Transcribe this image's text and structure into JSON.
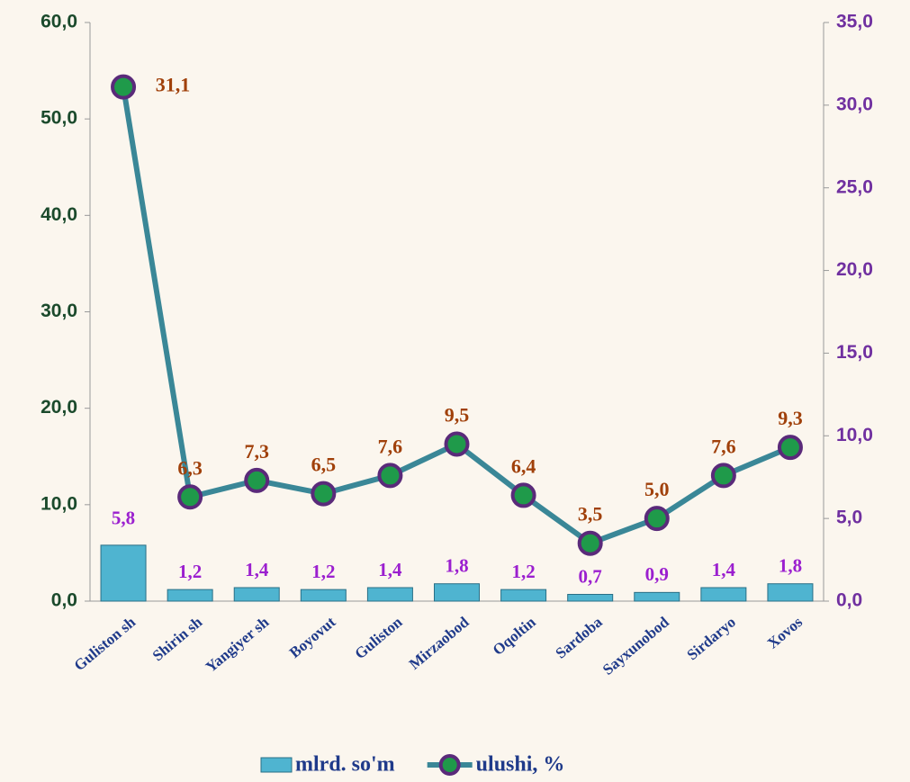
{
  "chart_data": {
    "type": "combo",
    "categories": [
      "Guliston sh",
      "Shirin sh",
      "Yangiyer sh",
      "Boyovut",
      "Guliston",
      "Mirzaobod",
      "Oqoltin",
      "Sardoba",
      "Sayxunobod",
      "Sirdaryo",
      "Xovos"
    ],
    "series": [
      {
        "name": "mlrd. so'm",
        "type": "bar",
        "color": "#4fb4d0",
        "values": [
          5.8,
          1.2,
          1.4,
          1.2,
          1.4,
          1.8,
          1.2,
          0.7,
          0.9,
          1.4,
          1.8
        ],
        "value_labels": [
          "5,8",
          "1,2",
          "1,4",
          "1,2",
          "1,4",
          "1,8",
          "1,2",
          "0,7",
          "0,9",
          "1,4",
          "1,8"
        ]
      },
      {
        "name": "ulushi, %",
        "type": "line",
        "axis": "y2",
        "color": "#3a8797",
        "marker_color": "#1f9a4a",
        "values": [
          31.1,
          6.3,
          7.3,
          6.5,
          7.6,
          9.5,
          6.4,
          3.5,
          5.0,
          7.6,
          9.3
        ],
        "value_labels": [
          "31,1",
          "6,3",
          "7,3",
          "6,5",
          "7,6",
          "9,5",
          "6,4",
          "3,5",
          "5,0",
          "7,6",
          "9,3"
        ]
      }
    ],
    "ylim": [
      0,
      60
    ],
    "yticks": [
      {
        "value": 0,
        "label": "0,0"
      },
      {
        "value": 10,
        "label": "10,0"
      },
      {
        "value": 20,
        "label": "20,0"
      },
      {
        "value": 30,
        "label": "30,0"
      },
      {
        "value": 40,
        "label": "40,0"
      },
      {
        "value": 50,
        "label": "50,0"
      },
      {
        "value": 60,
        "label": "60,0"
      }
    ],
    "y2lim": [
      0,
      35
    ],
    "y2ticks": [
      {
        "value": 0,
        "label": "0,0"
      },
      {
        "value": 5,
        "label": "5,0"
      },
      {
        "value": 10,
        "label": "10,0"
      },
      {
        "value": 15,
        "label": "15,0"
      },
      {
        "value": 20,
        "label": "20,0"
      },
      {
        "value": 25,
        "label": "25,0"
      },
      {
        "value": 30,
        "label": "30,0"
      },
      {
        "value": 35,
        "label": "35,0"
      }
    ],
    "grid": false
  }
}
